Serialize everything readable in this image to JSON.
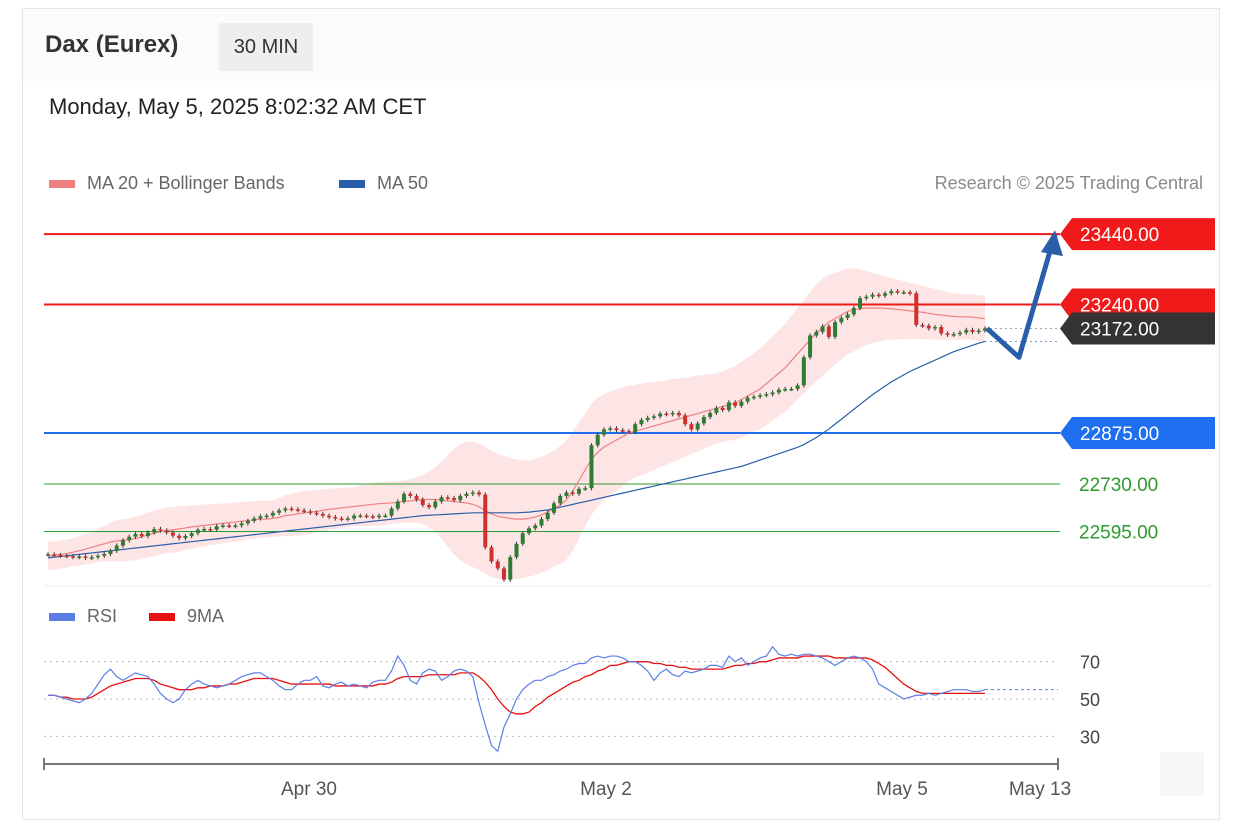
{
  "header": {
    "instrument": "Dax (Eurex)",
    "timeframe": "30 MIN",
    "datetime": "Monday, May 5, 2025 8:02:32 AM CET"
  },
  "legend": {
    "items": [
      {
        "label": "MA 20 + Bollinger Bands",
        "color": "#f08080"
      },
      {
        "label": "MA 50",
        "color": "#2a5ea8"
      }
    ],
    "rsi_items": [
      {
        "label": "RSI",
        "color": "#5b7ee6"
      },
      {
        "label": "9MA",
        "color": "#e81010"
      }
    ],
    "credit": "Research © 2025 Trading Central"
  },
  "colors": {
    "resistance": "#f01a1a",
    "pivot": "#1e6ef0",
    "support": "#2e9b2e",
    "last": "#333333",
    "candle_up": "#2e7d32",
    "candle_down": "#d32f2f",
    "band": "#fde0e0",
    "arrow": "#2a5ea8"
  },
  "chart_data": {
    "type": "candlestick",
    "title": "Dax (Eurex) 30 MIN",
    "ylim": [
      22440,
      23520
    ],
    "x_ticks": [
      "Apr 30",
      "May 2",
      "May 5",
      "May 13"
    ],
    "levels": [
      {
        "name": "resistance-2",
        "value": 23440.0,
        "label": "23440.00",
        "kind": "resistance"
      },
      {
        "name": "resistance-1",
        "value": 23240.0,
        "label": "23240.00",
        "kind": "resistance"
      },
      {
        "name": "last-price",
        "value": 23172.0,
        "label": "23172.00",
        "kind": "last"
      },
      {
        "name": "pivot",
        "value": 22875.0,
        "label": "22875.00",
        "kind": "pivot"
      },
      {
        "name": "support-1",
        "value": 22730.0,
        "label": "22730.00",
        "kind": "support"
      },
      {
        "name": "support-2",
        "value": 22595.0,
        "label": "22595.00",
        "kind": "support"
      }
    ],
    "close": [
      22530,
      22528,
      22526,
      22525,
      22522,
      22524,
      22520,
      22522,
      22526,
      22531,
      22540,
      22555,
      22570,
      22580,
      22588,
      22582,
      22592,
      22602,
      22598,
      22592,
      22583,
      22576,
      22582,
      22590,
      22600,
      22602,
      22600,
      22610,
      22612,
      22610,
      22612,
      22618,
      22625,
      22632,
      22638,
      22640,
      22648,
      22655,
      22660,
      22658,
      22655,
      22652,
      22648,
      22645,
      22640,
      22636,
      22632,
      22630,
      22632,
      22640,
      22640,
      22638,
      22636,
      22640,
      22640,
      22660,
      22680,
      22702,
      22696,
      22686,
      22670,
      22664,
      22680,
      22692,
      22690,
      22684,
      22696,
      22702,
      22706,
      22700,
      22550,
      22510,
      22490,
      22458,
      22522,
      22560,
      22590,
      22604,
      22612,
      22630,
      22648,
      22675,
      22696,
      22706,
      22702,
      22716,
      22718,
      22840,
      22870,
      22885,
      22888,
      22883,
      22880,
      22878,
      22900,
      22912,
      22918,
      22922,
      22930,
      22928,
      22932,
      22925,
      22900,
      22885,
      22902,
      22920,
      22932,
      22946,
      22940,
      22962,
      22952,
      22964,
      22975,
      22978,
      22982,
      22985,
      22990,
      22998,
      23000,
      23000,
      23010,
      23090,
      23152,
      23162,
      23178,
      23148,
      23190,
      23202,
      23212,
      23230,
      23258,
      23262,
      23268,
      23265,
      23272,
      23278,
      23275,
      23275,
      23272,
      23182,
      23180,
      23172,
      23176,
      23158,
      23154,
      23156,
      23160,
      23168,
      23162,
      23166,
      23172
    ],
    "ma20": [
      22525,
      22527,
      22530,
      22532,
      22536,
      22540,
      22545,
      22550,
      22555,
      22560,
      22565,
      22568,
      22570,
      22572,
      22575,
      22580,
      22585,
      22590,
      22594,
      22598,
      22600,
      22602,
      22605,
      22608,
      22610,
      22612,
      22614,
      22616,
      22618,
      22620,
      22622,
      22624,
      22626,
      22628,
      22630,
      22630,
      22632,
      22635,
      22640,
      22642,
      22645,
      22648,
      22650,
      22652,
      22655,
      22658,
      22660,
      22662,
      22664,
      22666,
      22668,
      22670,
      22672,
      22674,
      22675,
      22676,
      22678,
      22680,
      22682,
      22684,
      22686,
      22686,
      22686,
      22684,
      22682,
      22680,
      22678,
      22676,
      22672,
      22665,
      22655,
      22645,
      22638,
      22635,
      22632,
      22630,
      22630,
      22632,
      22636,
      22642,
      22650,
      22660,
      22670,
      22685,
      22710,
      22740,
      22770,
      22800,
      22820,
      22835,
      22845,
      22855,
      22865,
      22875,
      22880,
      22885,
      22890,
      22895,
      22900,
      22905,
      22910,
      22915,
      22920,
      22925,
      22930,
      22935,
      22940,
      22945,
      22950,
      22955,
      22960,
      22970,
      22980,
      22990,
      23000,
      23015,
      23030,
      23045,
      23060,
      23080,
      23100,
      23120,
      23140,
      23160,
      23175,
      23190,
      23200,
      23210,
      23220,
      23225,
      23228,
      23230,
      23230,
      23230,
      23229,
      23228,
      23226,
      23224,
      23222,
      23220,
      23218,
      23215,
      23212,
      23210,
      23208,
      23206,
      23205,
      23205,
      23204,
      23202,
      23200
    ],
    "ma50": [
      22520,
      22522,
      22524,
      22526,
      22528,
      22530,
      22532,
      22534,
      22536,
      22538,
      22540,
      22542,
      22544,
      22546,
      22548,
      22550,
      22552,
      22554,
      22556,
      22558,
      22560,
      22562,
      22564,
      22566,
      22568,
      22570,
      22572,
      22574,
      22576,
      22578,
      22580,
      22582,
      22584,
      22586,
      22588,
      22590,
      22592,
      22594,
      22596,
      22598,
      22600,
      22602,
      22604,
      22606,
      22608,
      22610,
      22612,
      22614,
      22616,
      22618,
      22620,
      22622,
      22624,
      22626,
      22628,
      22630,
      22632,
      22634,
      22636,
      22638,
      22640,
      22641,
      22642,
      22643,
      22644,
      22645,
      22646,
      22647,
      22648,
      22648,
      22648,
      22648,
      22648,
      22648,
      22648,
      22648,
      22649,
      22650,
      22652,
      22654,
      22656,
      22660,
      22664,
      22668,
      22672,
      22676,
      22680,
      22684,
      22688,
      22692,
      22696,
      22700,
      22704,
      22708,
      22712,
      22716,
      22720,
      22724,
      22728,
      22732,
      22736,
      22740,
      22744,
      22748,
      22752,
      22756,
      22760,
      22764,
      22768,
      22772,
      22776,
      22780,
      22786,
      22792,
      22798,
      22804,
      22810,
      22816,
      22822,
      22828,
      22834,
      22842,
      22852,
      22862,
      22874,
      22886,
      22900,
      22914,
      22928,
      22942,
      22956,
      22970,
      22984,
      22996,
      23008,
      23020,
      23030,
      23040,
      23050,
      23058,
      23066,
      23074,
      23082,
      23090,
      23098,
      23106,
      23112,
      23118,
      23124,
      23130,
      23135
    ],
    "band_width": [
      40,
      40,
      40,
      40,
      40,
      42,
      44,
      46,
      48,
      50,
      55,
      58,
      60,
      60,
      62,
      62,
      64,
      65,
      65,
      65,
      65,
      65,
      62,
      62,
      60,
      60,
      58,
      58,
      56,
      56,
      55,
      55,
      54,
      54,
      52,
      52,
      52,
      55,
      58,
      60,
      62,
      62,
      62,
      60,
      60,
      58,
      58,
      56,
      56,
      55,
      58,
      60,
      62,
      62,
      62,
      60,
      60,
      60,
      62,
      65,
      70,
      80,
      92,
      110,
      130,
      150,
      165,
      175,
      178,
      180,
      180,
      180,
      178,
      175,
      172,
      170,
      168,
      165,
      165,
      165,
      165,
      165,
      168,
      170,
      170,
      165,
      160,
      158,
      155,
      150,
      148,
      145,
      140,
      135,
      132,
      130,
      128,
      125,
      122,
      120,
      118,
      115,
      112,
      110,
      108,
      105,
      102,
      100,
      100,
      102,
      105,
      108,
      110,
      112,
      115,
      118,
      120,
      122,
      125,
      128,
      130,
      132,
      135,
      138,
      138,
      135,
      130,
      126,
      122,
      118,
      112,
      105,
      100,
      95,
      90,
      88,
      85,
      82,
      80,
      78,
      76,
      74,
      72,
      70,
      68,
      66,
      65,
      65,
      65,
      65,
      65
    ],
    "rsi": [
      52,
      52,
      51,
      50,
      49,
      48,
      50,
      53,
      58,
      63,
      66,
      62,
      60,
      62,
      64,
      63,
      62,
      58,
      53,
      50,
      48,
      50,
      55,
      58,
      60,
      58,
      57,
      56,
      57,
      58,
      60,
      62,
      63,
      64,
      64,
      62,
      60,
      57,
      55,
      55,
      58,
      60,
      60,
      62,
      57,
      56,
      58,
      59,
      57,
      58,
      57,
      56,
      59,
      60,
      60,
      65,
      73,
      68,
      60,
      58,
      64,
      66,
      65,
      60,
      62,
      65,
      66,
      65,
      62,
      48,
      36,
      25,
      22,
      35,
      42,
      50,
      55,
      58,
      60,
      60,
      62,
      63,
      65,
      66,
      68,
      69,
      69,
      72,
      73,
      72,
      73,
      73,
      72,
      70,
      70,
      68,
      65,
      60,
      64,
      66,
      63,
      62,
      65,
      64,
      65,
      66,
      68,
      68,
      67,
      73,
      70,
      72,
      68,
      70,
      72,
      73,
      78,
      74,
      73,
      74,
      73,
      74,
      74,
      73,
      72,
      70,
      68,
      70,
      72,
      73,
      72,
      70,
      66,
      58,
      56,
      54,
      52,
      50,
      51,
      52,
      52,
      53,
      52,
      53,
      54,
      55,
      55,
      55,
      54,
      54,
      55
    ],
    "rsi_9ma": [
      52,
      52,
      51,
      51,
      50,
      50,
      50,
      51,
      53,
      55,
      57,
      58,
      59,
      60,
      61,
      61,
      61,
      60,
      58,
      57,
      56,
      55,
      55,
      55,
      56,
      56,
      57,
      57,
      57,
      58,
      58,
      59,
      60,
      61,
      61,
      61,
      61,
      60,
      59,
      58,
      58,
      58,
      58,
      58,
      58,
      58,
      57,
      57,
      57,
      57,
      57,
      57,
      57,
      58,
      58,
      59,
      61,
      62,
      62,
      62,
      62,
      63,
      63,
      63,
      63,
      63,
      64,
      64,
      64,
      62,
      59,
      55,
      50,
      46,
      43,
      42,
      42,
      43,
      46,
      48,
      51,
      53,
      55,
      57,
      59,
      60,
      62,
      63,
      65,
      66,
      68,
      68,
      69,
      70,
      70,
      70,
      70,
      69,
      69,
      68,
      68,
      67,
      67,
      66,
      66,
      66,
      66,
      66,
      66,
      67,
      68,
      68,
      69,
      69,
      70,
      70,
      71,
      72,
      72,
      72,
      72,
      73,
      73,
      73,
      73,
      73,
      72,
      72,
      72,
      72,
      72,
      72,
      71,
      69,
      67,
      64,
      61,
      58,
      56,
      54,
      53,
      53,
      53,
      53,
      53,
      53,
      53,
      53,
      53,
      53,
      53
    ],
    "rsi_ticks": [
      70,
      50,
      30
    ],
    "forecast_arrow": {
      "points": [
        [
          23172,
          0
        ],
        [
          23090,
          8
        ],
        [
          23440,
          18
        ]
      ]
    }
  }
}
